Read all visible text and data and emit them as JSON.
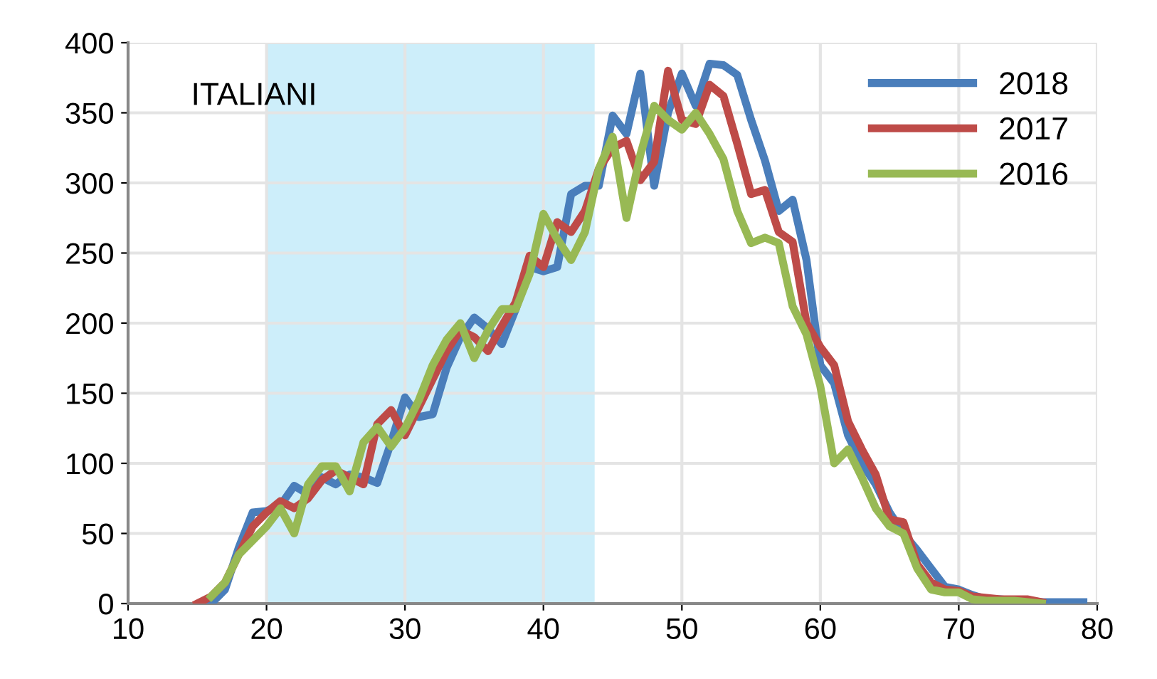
{
  "chart_data": {
    "type": "line",
    "title": "ITALIANI",
    "x": [
      15,
      16,
      17,
      18,
      19,
      20,
      21,
      22,
      23,
      24,
      25,
      26,
      27,
      28,
      29,
      30,
      31,
      32,
      33,
      34,
      35,
      36,
      37,
      38,
      39,
      40,
      41,
      42,
      43,
      44,
      45,
      46,
      47,
      48,
      49,
      50,
      51,
      52,
      53,
      54,
      55,
      56,
      57,
      58,
      59,
      60,
      61,
      62,
      63,
      64,
      65,
      66,
      67,
      68,
      69,
      70,
      71,
      72,
      73,
      74,
      75,
      76,
      77,
      78,
      79
    ],
    "series": [
      {
        "name": "2018",
        "color": "#4a7ebb",
        "values": [
          null,
          0,
          10,
          40,
          65,
          66,
          70,
          84,
          78,
          90,
          85,
          92,
          90,
          86,
          115,
          147,
          133,
          135,
          168,
          190,
          204,
          196,
          185,
          210,
          240,
          237,
          240,
          292,
          298,
          298,
          348,
          335,
          378,
          298,
          350,
          378,
          355,
          385,
          384,
          377,
          345,
          316,
          280,
          288,
          245,
          170,
          157,
          120,
          100,
          85,
          65,
          50,
          38,
          25,
          12,
          10,
          6,
          3,
          3,
          2,
          2,
          1,
          1,
          1,
          1
        ]
      },
      {
        "name": "2017",
        "color": "#be4b48",
        "values": [
          0,
          5,
          15,
          35,
          55,
          65,
          73,
          68,
          75,
          88,
          95,
          90,
          85,
          128,
          138,
          120,
          140,
          160,
          180,
          195,
          190,
          180,
          198,
          215,
          248,
          240,
          272,
          265,
          280,
          310,
          325,
          330,
          302,
          315,
          380,
          345,
          342,
          370,
          362,
          328,
          292,
          295,
          265,
          258,
          200,
          183,
          170,
          130,
          110,
          92,
          60,
          58,
          28,
          15,
          10,
          9,
          5,
          4,
          3,
          3,
          3,
          1,
          null,
          null,
          null
        ]
      },
      {
        "name": "2016",
        "color": "#98b954",
        "values": [
          null,
          5,
          15,
          35,
          45,
          55,
          68,
          50,
          85,
          98,
          98,
          80,
          115,
          126,
          112,
          125,
          145,
          170,
          188,
          200,
          175,
          195,
          210,
          210,
          235,
          278,
          260,
          245,
          265,
          310,
          333,
          275,
          320,
          355,
          345,
          338,
          350,
          335,
          317,
          280,
          257,
          261,
          257,
          212,
          192,
          155,
          100,
          110,
          90,
          68,
          55,
          50,
          25,
          10,
          8,
          8,
          3,
          2,
          2,
          2,
          1,
          0,
          null,
          null,
          null
        ]
      }
    ],
    "xlim": [
      10,
      80
    ],
    "xticks": [
      10,
      20,
      30,
      40,
      50,
      60,
      70,
      80
    ],
    "ylim": [
      0,
      400
    ],
    "yticks": [
      0,
      50,
      100,
      150,
      200,
      250,
      300,
      350,
      400
    ],
    "bands": [
      {
        "axis": "x",
        "from": 20,
        "to": 43.7,
        "color": "#cdeefa"
      }
    ],
    "grid": true,
    "legend": "top right",
    "line_style": "solid",
    "marker": "none"
  }
}
